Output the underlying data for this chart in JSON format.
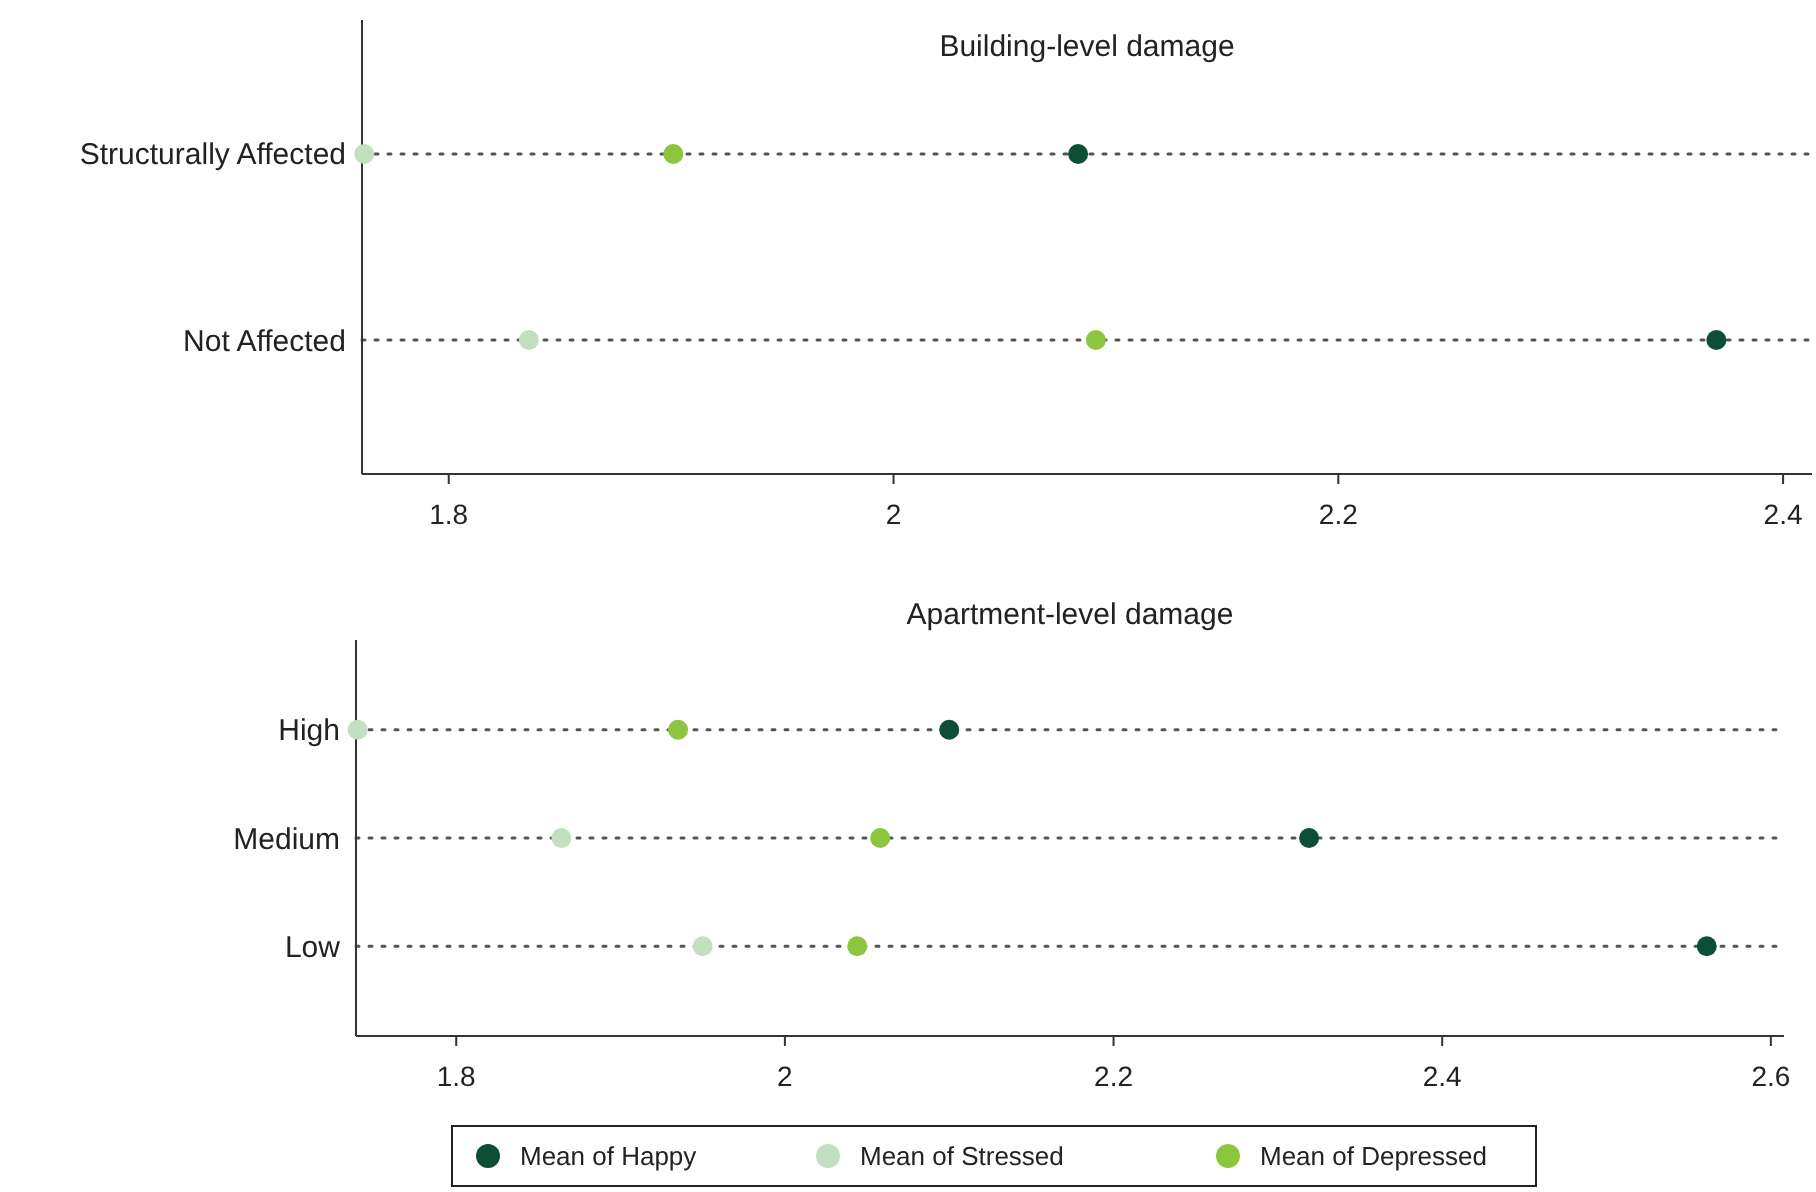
{
  "chart_data": [
    {
      "type": "scatter",
      "title": "Building-level damage",
      "orientation": "horizontal",
      "categories": [
        "Structurally Affected",
        "Not Affected"
      ],
      "xlim": [
        1.761,
        2.413
      ],
      "xticks": [
        1.8,
        2,
        2.2,
        2.4
      ],
      "grid": "y",
      "marker": "circle",
      "series": [
        {
          "color": "#0e4d36",
          "values": [
            2.083,
            2.37
          ]
        },
        {
          "color": "#c2dfbf",
          "values": [
            1.762,
            1.836
          ]
        },
        {
          "color": "#8cc63f",
          "values": [
            1.901,
            2.091
          ]
        }
      ]
    },
    {
      "type": "scatter",
      "title": "Apartment-level damage",
      "orientation": "horizontal",
      "categories": [
        "High",
        "Medium",
        "Low"
      ],
      "xlim": [
        1.739,
        2.608
      ],
      "xticks": [
        1.8,
        2,
        2.2,
        2.4,
        2.6
      ],
      "grid": "y",
      "marker": "circle",
      "legend": "bottom",
      "series": [
        {
          "name": "Mean of Happy",
          "color": "#0e4d36",
          "values": [
            2.1,
            2.319,
            2.561
          ]
        },
        {
          "name": "Mean of Stressed",
          "color": "#c2dfbf",
          "values": [
            1.74,
            1.864,
            1.95
          ]
        },
        {
          "name": "Mean of Depressed",
          "color": "#8cc63f",
          "values": [
            1.935,
            2.058,
            2.044
          ]
        }
      ]
    }
  ]
}
